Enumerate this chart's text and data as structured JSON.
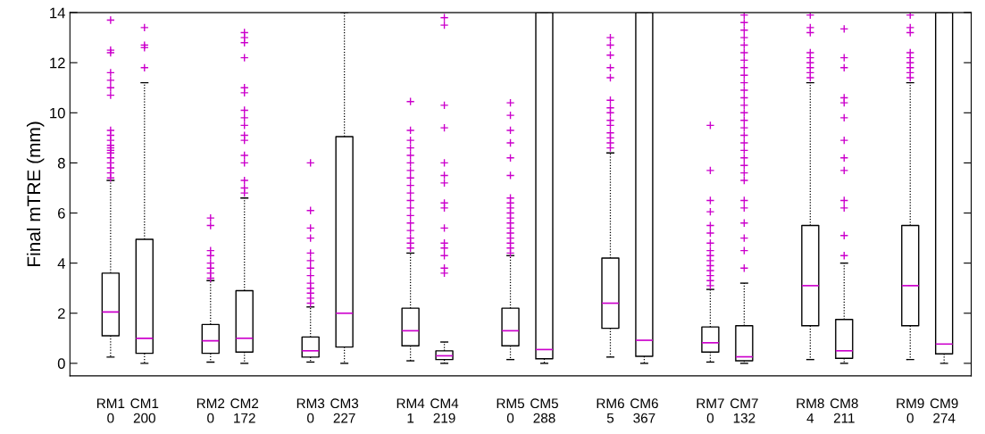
{
  "chart_data": {
    "type": "box",
    "ylabel": "Final mTRE (mm)",
    "categories": [
      "RM1\n0",
      "CM1\n200",
      "RM2\n0",
      "CM2\n172",
      "RM3\n0",
      "CM3\n227",
      "RM4\n1",
      "CM4\n219",
      "RM5\n0",
      "CM5\n288",
      "RM6\n5",
      "CM6\n367",
      "RM7\n0",
      "CM7\n132",
      "RM8\n4",
      "CM8\n211",
      "RM9\n0",
      "CM9\n274"
    ],
    "boxes": [
      {
        "low": 0.25,
        "q1": 1.1,
        "median": 2.05,
        "q3": 3.6,
        "high": 7.3,
        "outliers": [
          7.4,
          7.6,
          7.8,
          8.0,
          8.2,
          8.4,
          8.5,
          8.6,
          8.7,
          8.9,
          9.1,
          9.3,
          10.7,
          11.0,
          11.3,
          11.6,
          12.4,
          12.5,
          13.7
        ]
      },
      {
        "low": 0,
        "q1": 0.4,
        "median": 1.0,
        "q3": 4.95,
        "high": 11.2,
        "outliers": [
          11.8,
          12.6,
          12.7,
          13.4
        ]
      },
      {
        "low": 0.05,
        "q1": 0.4,
        "median": 0.9,
        "q3": 1.55,
        "high": 3.3,
        "outliers": [
          3.4,
          3.6,
          3.8,
          4.0,
          4.3,
          4.5,
          5.5,
          5.8
        ]
      },
      {
        "low": 0,
        "q1": 0.45,
        "median": 1.0,
        "q3": 2.9,
        "high": 6.6,
        "outliers": [
          6.8,
          7.0,
          7.3,
          8.0,
          8.3,
          8.9,
          9.1,
          9.5,
          9.8,
          10.1,
          10.8,
          11.0,
          12.2,
          12.8,
          13.0,
          13.2
        ]
      },
      {
        "low": 0.05,
        "q1": 0.25,
        "median": 0.5,
        "q3": 1.05,
        "high": 2.25,
        "outliers": [
          2.4,
          2.6,
          2.8,
          3.0,
          3.2,
          3.5,
          3.8,
          4.1,
          4.4,
          5.0,
          5.4,
          6.1,
          8.0
        ]
      },
      {
        "low": 0,
        "q1": 0.65,
        "median": 2.0,
        "q3": 9.05,
        "high": 14
      },
      {
        "low": 0.1,
        "q1": 0.7,
        "median": 1.3,
        "q3": 2.2,
        "high": 4.4,
        "outliers": [
          4.6,
          4.8,
          5.0,
          5.3,
          5.6,
          5.9,
          6.2,
          6.5,
          6.8,
          7.1,
          7.4,
          7.7,
          8.0,
          8.3,
          8.6,
          8.9,
          9.3,
          10.45
        ]
      },
      {
        "low": 0,
        "q1": 0.15,
        "median": 0.3,
        "q3": 0.5,
        "high": 0.85,
        "outliers": [
          3.6,
          3.8,
          4.3,
          4.6,
          4.8,
          5.4,
          6.2,
          6.4,
          7.2,
          7.5,
          8.0,
          9.4,
          10.3,
          13.5,
          13.8
        ]
      },
      {
        "low": 0.15,
        "q1": 0.7,
        "median": 1.3,
        "q3": 2.2,
        "high": 4.3,
        "outliers": [
          4.4,
          4.6,
          4.8,
          5.0,
          5.2,
          5.4,
          5.6,
          5.8,
          6.0,
          6.2,
          6.4,
          6.6,
          7.5,
          8.2,
          8.8,
          9.3,
          9.9,
          10.4
        ]
      },
      {
        "low": 0,
        "q1": 0.18,
        "median": 0.55,
        "q3": 14,
        "high": 14
      },
      {
        "low": 0.25,
        "q1": 1.4,
        "median": 2.4,
        "q3": 4.2,
        "high": 8.4,
        "outliers": [
          8.6,
          8.8,
          9.0,
          9.2,
          9.5,
          9.7,
          10.0,
          10.2,
          10.5,
          11.4,
          11.8,
          12.3,
          12.7,
          13.0
        ]
      },
      {
        "low": 0,
        "q1": 0.28,
        "median": 0.92,
        "q3": 14,
        "high": 14
      },
      {
        "low": 0.05,
        "q1": 0.45,
        "median": 0.82,
        "q3": 1.45,
        "high": 2.95,
        "outliers": [
          3.1,
          3.3,
          3.5,
          3.7,
          3.9,
          4.1,
          4.3,
          4.5,
          4.8,
          5.2,
          5.5,
          6.05,
          6.5,
          7.7,
          9.5
        ]
      },
      {
        "low": 0,
        "q1": 0.1,
        "median": 0.26,
        "q3": 1.5,
        "high": 3.2,
        "outliers": [
          3.8,
          4.5,
          5.0,
          5.6,
          6.2,
          6.5,
          7.3,
          7.6,
          7.9,
          8.2,
          8.5,
          8.8,
          9.1,
          9.4,
          9.7,
          10.0,
          10.3,
          10.6,
          10.9,
          11.2,
          11.5,
          11.8,
          12.1,
          12.4,
          12.7,
          13.0,
          13.3,
          13.6,
          13.9
        ]
      },
      {
        "low": 0.15,
        "q1": 1.5,
        "median": 3.1,
        "q3": 5.5,
        "high": 11.2,
        "outliers": [
          11.4,
          11.6,
          11.8,
          12.0,
          12.2,
          12.4,
          13.2,
          13.4,
          13.9
        ]
      },
      {
        "low": 0,
        "q1": 0.2,
        "median": 0.5,
        "q3": 1.75,
        "high": 4.0,
        "outliers": [
          4.3,
          5.1,
          6.2,
          6.5,
          7.7,
          8.2,
          8.9,
          9.8,
          10.4,
          10.6,
          11.8,
          12.2,
          13.35
        ]
      },
      {
        "low": 0.15,
        "q1": 1.5,
        "median": 3.1,
        "q3": 5.5,
        "high": 11.2,
        "outliers": [
          11.4,
          11.6,
          11.8,
          12.0,
          12.2,
          12.4,
          13.2,
          13.4,
          13.9
        ]
      },
      {
        "low": 0,
        "q1": 0.38,
        "median": 0.77,
        "q3": 14,
        "high": 14
      }
    ],
    "color": "#000000",
    "marker": "cross",
    "ylim": [
      -0.5,
      14
    ],
    "yticks": [
      0,
      2,
      4,
      6,
      8,
      10,
      12,
      14
    ],
    "grid": false
  }
}
